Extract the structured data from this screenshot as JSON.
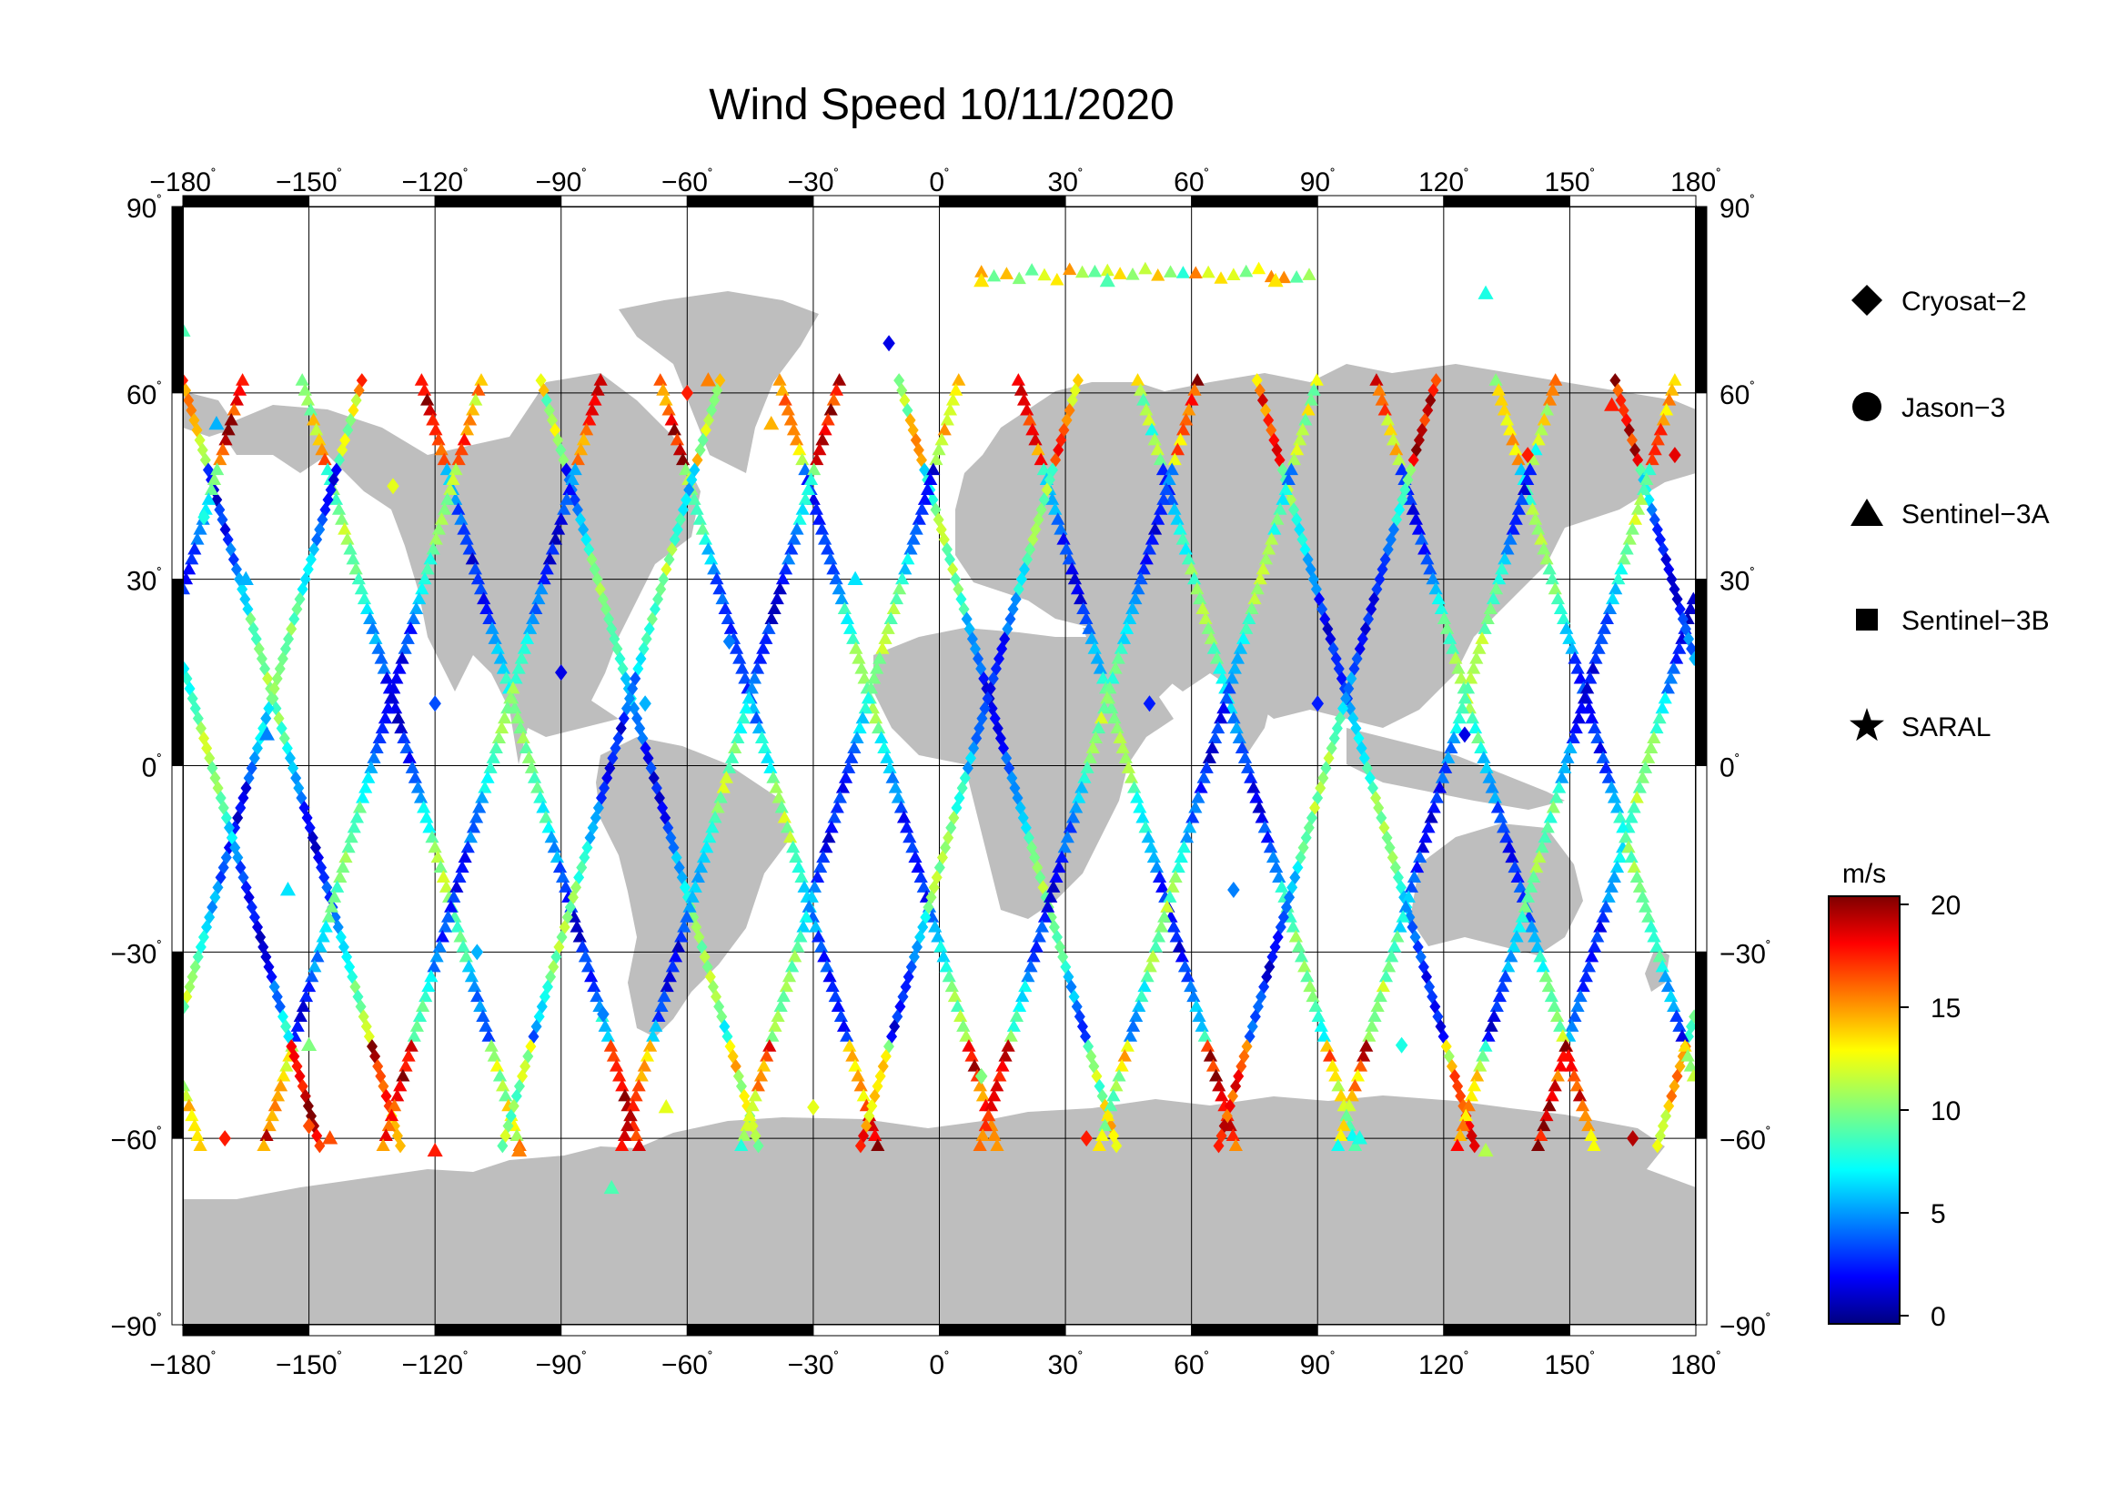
{
  "map": {
    "title": "Wind Speed 10/11/2020",
    "projection": "plate-carree",
    "lon_ticks": [
      "−180",
      "−150",
      "−120",
      "−90",
      "−60",
      "−30",
      "0",
      "30",
      "60",
      "90",
      "120",
      "150",
      "180"
    ],
    "lat_ticks_left": [
      "90",
      "60",
      "30",
      "0",
      "−30",
      "−60",
      "−90"
    ],
    "lat_ticks_right": [
      "90",
      "60",
      "30",
      "0",
      "−30",
      "−60",
      "−90"
    ],
    "degree_symbol": "˚",
    "land_color": "#bebebe",
    "ocean_color": "#ffffff",
    "grid_color": "#000000"
  },
  "legend": {
    "items": [
      {
        "label": "Cryosat−2",
        "marker": "diamond"
      },
      {
        "label": "Jason−3",
        "marker": "circle"
      },
      {
        "label": "Sentinel−3A",
        "marker": "triangle"
      },
      {
        "label": "Sentinel−3B",
        "marker": "square"
      },
      {
        "label": "SARAL",
        "marker": "star"
      }
    ]
  },
  "colorbar": {
    "unit": "m/s",
    "ticks": [
      "20",
      "15",
      "10",
      "5",
      "0"
    ],
    "min": 0,
    "max": 20,
    "colormap": "jet"
  },
  "chart_data": {
    "type": "scatter",
    "title": "Wind Speed 10/11/2020",
    "xlabel": "",
    "ylabel": "",
    "xlim": [
      -180,
      180
    ],
    "ylim": [
      -90,
      90
    ],
    "color_scale": {
      "min": 0,
      "max": 20,
      "unit": "m/s"
    },
    "series": [
      {
        "name": "Sentinel−3A",
        "marker": "triangle",
        "points": [
          {
            "lon": -180,
            "lat": 70,
            "v": 9
          },
          {
            "lon": -172,
            "lat": 55,
            "v": 6
          },
          {
            "lon": -165,
            "lat": 30,
            "v": 6
          },
          {
            "lon": -160,
            "lat": 5,
            "v": 5
          },
          {
            "lon": -155,
            "lat": -20,
            "v": 7
          },
          {
            "lon": -150,
            "lat": -45,
            "v": 10
          },
          {
            "lon": -145,
            "lat": -60,
            "v": 16
          },
          {
            "lon": -120,
            "lat": -62,
            "v": 17
          },
          {
            "lon": -100,
            "lat": -62,
            "v": 15
          },
          {
            "lon": -78,
            "lat": -68,
            "v": 9
          },
          {
            "lon": -65,
            "lat": -55,
            "v": 12
          },
          {
            "lon": -55,
            "lat": 62,
            "v": 15
          },
          {
            "lon": -40,
            "lat": 55,
            "v": 14
          },
          {
            "lon": -20,
            "lat": 30,
            "v": 7
          },
          {
            "lon": 10,
            "lat": 78,
            "v": 13
          },
          {
            "lon": 40,
            "lat": 78,
            "v": 9
          },
          {
            "lon": 80,
            "lat": 78,
            "v": 13
          },
          {
            "lon": 130,
            "lat": 76,
            "v": 8
          },
          {
            "lon": 100,
            "lat": -60,
            "v": 8
          },
          {
            "lon": 130,
            "lat": -62,
            "v": 11
          },
          {
            "lon": 160,
            "lat": 58,
            "v": 17
          }
        ]
      },
      {
        "name": "Cryosat−2",
        "marker": "diamond",
        "points": [
          {
            "lon": -175,
            "lat": 40,
            "v": 8
          },
          {
            "lon": -170,
            "lat": -60,
            "v": 17
          },
          {
            "lon": -150,
            "lat": -58,
            "v": 16
          },
          {
            "lon": -130,
            "lat": 45,
            "v": 12
          },
          {
            "lon": -120,
            "lat": 10,
            "v": 4
          },
          {
            "lon": -110,
            "lat": -30,
            "v": 6
          },
          {
            "lon": -90,
            "lat": 15,
            "v": 2
          },
          {
            "lon": -80,
            "lat": -40,
            "v": 5
          },
          {
            "lon": -70,
            "lat": 10,
            "v": 6
          },
          {
            "lon": -60,
            "lat": 60,
            "v": 17
          },
          {
            "lon": -50,
            "lat": 20,
            "v": 5
          },
          {
            "lon": -30,
            "lat": -55,
            "v": 12
          },
          {
            "lon": -12,
            "lat": 68,
            "v": 2
          },
          {
            "lon": 10,
            "lat": -50,
            "v": 10
          },
          {
            "lon": 35,
            "lat": -60,
            "v": 17
          },
          {
            "lon": 50,
            "lat": 10,
            "v": 3
          },
          {
            "lon": 70,
            "lat": -20,
            "v": 5
          },
          {
            "lon": 90,
            "lat": 10,
            "v": 3
          },
          {
            "lon": 110,
            "lat": -45,
            "v": 8
          },
          {
            "lon": 125,
            "lat": 5,
            "v": 2
          },
          {
            "lon": 140,
            "lat": 50,
            "v": 17
          },
          {
            "lon": 165,
            "lat": -60,
            "v": 19
          },
          {
            "lon": 175,
            "lat": 50,
            "v": 18
          }
        ]
      }
    ]
  }
}
